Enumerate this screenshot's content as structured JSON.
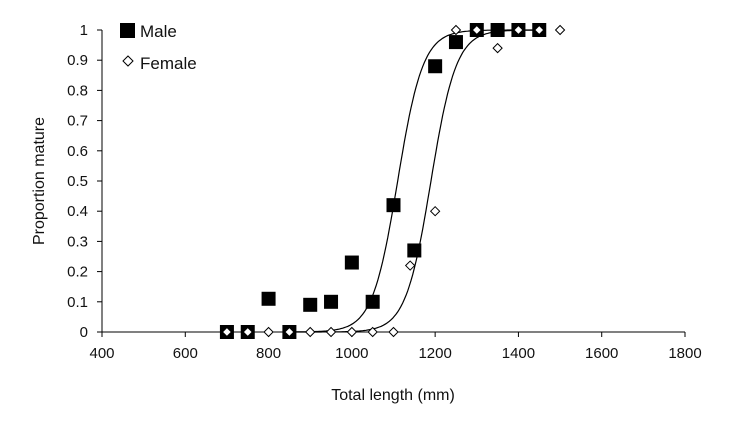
{
  "chart_data": {
    "type": "scatter",
    "title": "",
    "xlabel": "Total length (mm)",
    "ylabel": "Proportion mature",
    "xlim": [
      400,
      1800
    ],
    "ylim": [
      0,
      1
    ],
    "xticks": [
      400,
      600,
      800,
      1000,
      1200,
      1400,
      1600,
      1800
    ],
    "yticks": [
      0,
      0.1,
      0.2,
      0.3,
      0.4,
      0.5,
      0.6,
      0.7,
      0.8,
      0.9,
      1
    ],
    "ytick_labels": [
      "0",
      "0.1",
      "0.2",
      "0.3",
      "0.4",
      "0.5",
      "0.6",
      "0.7",
      "0.8",
      "0.9",
      "1"
    ],
    "grid": false,
    "legend_position": "top-left",
    "series": [
      {
        "name": "Male",
        "marker": "filled-square",
        "color": "#000000",
        "points": [
          [
            700,
            0
          ],
          [
            750,
            0
          ],
          [
            800,
            0.11
          ],
          [
            850,
            0
          ],
          [
            900,
            0.09
          ],
          [
            950,
            0.1
          ],
          [
            1000,
            0.23
          ],
          [
            1050,
            0.1
          ],
          [
            1100,
            0.42
          ],
          [
            1150,
            0.27
          ],
          [
            1200,
            0.88
          ],
          [
            1250,
            0.96
          ],
          [
            1300,
            1
          ],
          [
            1350,
            1
          ],
          [
            1400,
            1
          ],
          [
            1450,
            1
          ]
        ],
        "fit": {
          "type": "logistic",
          "midpoint": 1110,
          "slope": 0.033
        }
      },
      {
        "name": "Female",
        "marker": "open-diamond",
        "color": "#000000",
        "points": [
          [
            700,
            0
          ],
          [
            750,
            0
          ],
          [
            800,
            0
          ],
          [
            850,
            0
          ],
          [
            900,
            0
          ],
          [
            950,
            0
          ],
          [
            1000,
            0
          ],
          [
            1050,
            0
          ],
          [
            1100,
            0
          ],
          [
            1140,
            0.22
          ],
          [
            1200,
            0.4
          ],
          [
            1250,
            1
          ],
          [
            1300,
            1
          ],
          [
            1350,
            0.94
          ],
          [
            1400,
            1
          ],
          [
            1450,
            1
          ],
          [
            1500,
            1
          ]
        ],
        "fit": {
          "type": "logistic",
          "midpoint": 1190,
          "slope": 0.033
        }
      }
    ]
  }
}
